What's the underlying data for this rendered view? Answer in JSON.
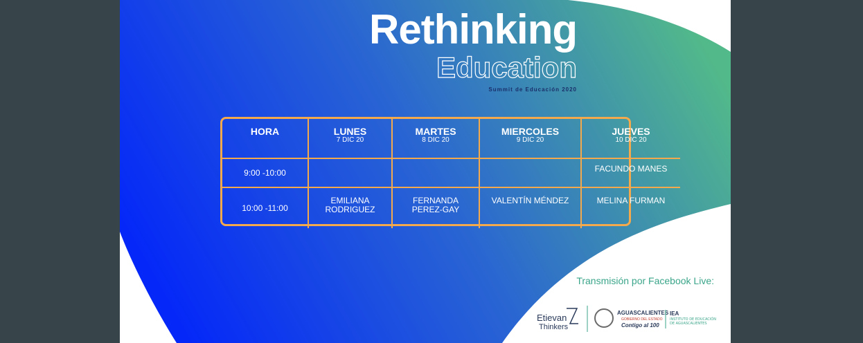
{
  "header": {
    "title": "Rethinking",
    "subtitle": "Education",
    "tagline": "Summit de Educación 2020"
  },
  "table": {
    "columns": [
      {
        "name": "HORA",
        "date": null
      },
      {
        "name": "LUNES",
        "date": "7 DIC 20"
      },
      {
        "name": "MARTES",
        "date": "8 DIC 20"
      },
      {
        "name": "MIERCOLES",
        "date": "9 DIC 20"
      },
      {
        "name": "JUEVES",
        "date": "10 DIC 20"
      }
    ],
    "rows": [
      [
        "9:00 -10:00",
        null,
        null,
        null,
        "FACUNDO MANES"
      ],
      [
        "10:00 -11:00",
        "EMILIANA RODRIGUEZ",
        "FERNANDA PEREZ-GAY",
        "VALENTÍN MÉNDEZ",
        "MELINA FURMAN"
      ]
    ]
  },
  "footer": {
    "note": "Transmisión por Facebook Live:",
    "logos": {
      "etievan": "Etievan",
      "thinkers": "Thinkers",
      "state": "AGUASCALIENTES",
      "government": "GOBIERNO DEL ESTADO",
      "slogan": "Contigo al 100",
      "iea": "IEA",
      "institute": "INSTITUTO DE EDUCACIÓN DE AGUASCALIENTES"
    }
  }
}
